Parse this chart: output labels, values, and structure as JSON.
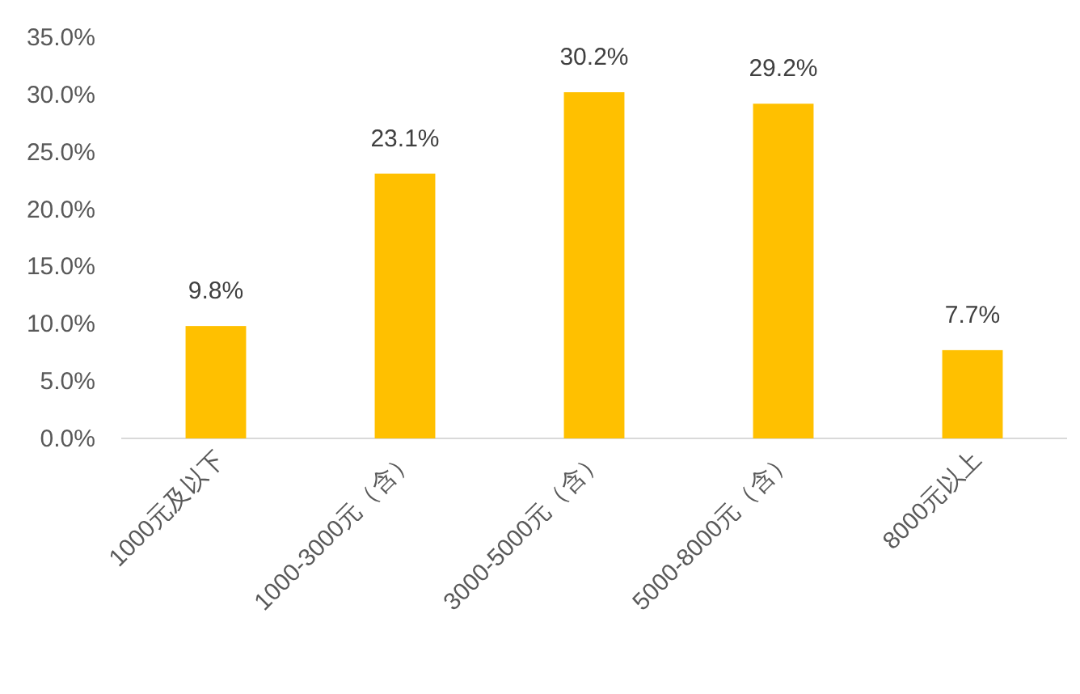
{
  "chart_data": {
    "type": "bar",
    "categories": [
      "1000元及以下",
      "1000-3000元（含）",
      "3000-5000元（含）",
      "5000-8000元（含）",
      "8000元以上"
    ],
    "values": [
      9.8,
      23.1,
      30.2,
      29.2,
      7.7
    ],
    "value_labels": [
      "9.8%",
      "23.1%",
      "30.2%",
      "29.2%",
      "7.7%"
    ],
    "color": "#ffc000",
    "ylim": [
      0,
      35
    ],
    "yticks": [
      {
        "value": 0,
        "label": "0.0%"
      },
      {
        "value": 5,
        "label": "5.0%"
      },
      {
        "value": 10,
        "label": "10.0%"
      },
      {
        "value": 15,
        "label": "15.0%"
      },
      {
        "value": 20,
        "label": "20.0%"
      },
      {
        "value": 25,
        "label": "25.0%"
      },
      {
        "value": 30,
        "label": "30.0%"
      },
      {
        "value": 35,
        "label": "35.0%"
      }
    ]
  }
}
